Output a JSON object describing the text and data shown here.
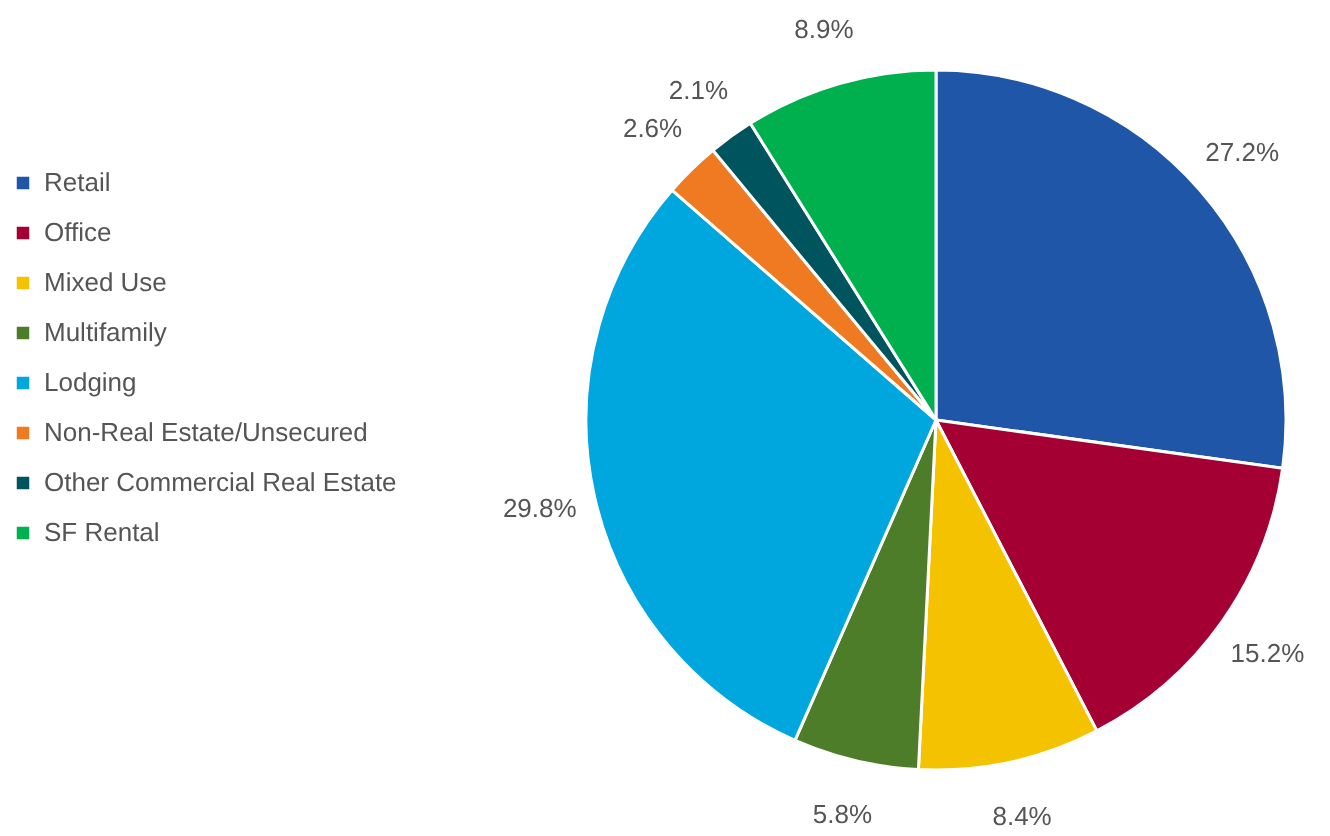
{
  "chart_data": {
    "type": "pie",
    "categories": [
      "Retail",
      "Office",
      "Mixed Use",
      "Multifamily",
      "Lodging",
      "Non-Real Estate/Unsecured",
      "Other Commercial Real Estate",
      "SF Rental"
    ],
    "values": [
      27.2,
      15.2,
      8.4,
      5.8,
      29.8,
      2.6,
      2.1,
      8.9
    ],
    "colors": [
      "#1f56a8",
      "#a50034",
      "#f5c200",
      "#4e7d2a",
      "#00a6de",
      "#f07a22",
      "#00545e",
      "#00b04f"
    ],
    "value_labels": [
      "27.2%",
      "15.2%",
      "8.4%",
      "5.8%",
      "29.8%",
      "2.6%",
      "2.1%",
      "8.9%"
    ],
    "legend": "left"
  }
}
